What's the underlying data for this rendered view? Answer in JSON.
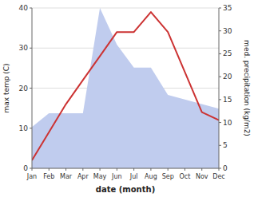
{
  "chart_data": {
    "type": "line",
    "xlabel": "date (month)",
    "ylabel": "max temp (C)",
    "y2label": "med. precipitation (kg/m2)",
    "categories": [
      "Jan",
      "Feb",
      "Mar",
      "Apr",
      "May",
      "Jun",
      "Jul",
      "Aug",
      "Sep",
      "Oct",
      "Nov",
      "Dec"
    ],
    "series": [
      {
        "type": "area",
        "color": "#c0ccee",
        "axis": "y2",
        "values": [
          9,
          12,
          12,
          12,
          35,
          27,
          22,
          22,
          16,
          15,
          14,
          13
        ]
      },
      {
        "type": "line",
        "color": "#cc3333",
        "values": [
          2,
          9,
          16,
          22,
          28,
          34,
          34,
          39,
          34,
          24,
          14,
          12
        ]
      }
    ],
    "ylim": [
      0,
      40
    ],
    "yticks": [
      0,
      10,
      20,
      30,
      40
    ],
    "y2lim": [
      0,
      35
    ],
    "y2ticks": [
      0,
      5,
      10,
      15,
      20,
      25,
      30,
      35
    ],
    "grid": true
  }
}
